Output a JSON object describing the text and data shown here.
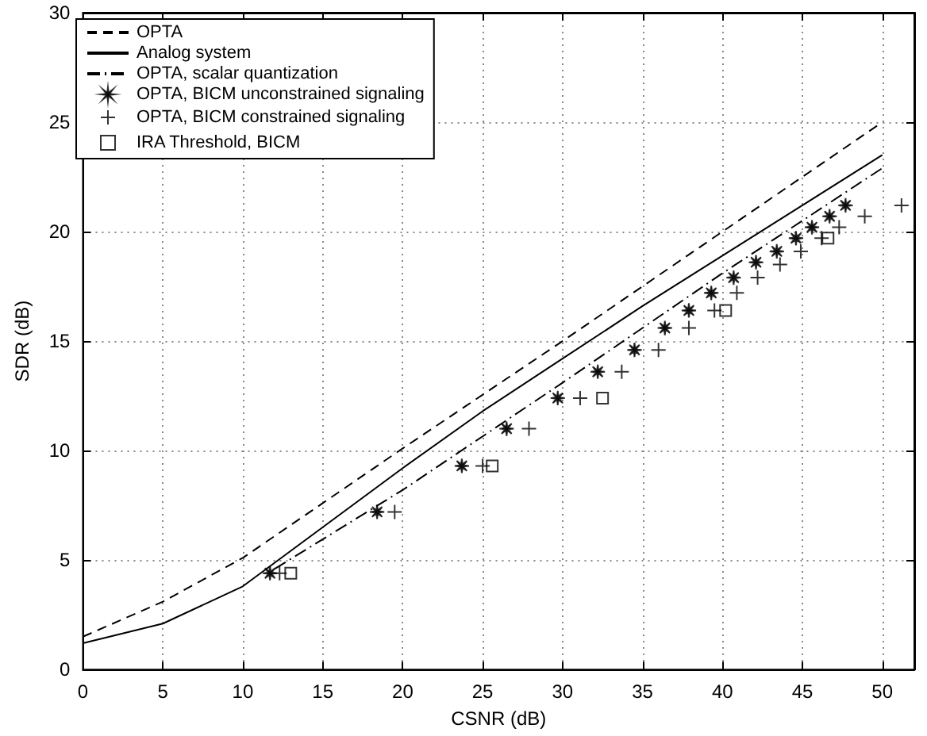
{
  "chart_data": {
    "type": "line",
    "xlabel": "CSNR (dB)",
    "ylabel": "SDR (dB)",
    "xlim": [
      0,
      52
    ],
    "ylim": [
      0,
      30
    ],
    "xticks": [
      0,
      5,
      10,
      15,
      20,
      25,
      30,
      35,
      40,
      45,
      50
    ],
    "yticks": [
      0,
      5,
      10,
      15,
      20,
      25,
      30
    ],
    "grid": true,
    "legend": "top left",
    "series": [
      {
        "name": "OPTA",
        "line_style": "dashed",
        "color": "#000000",
        "x": [
          0,
          5,
          10,
          15,
          20,
          30,
          40,
          50
        ],
        "values": [
          1.5,
          3.1,
          5.1,
          7.6,
          10.1,
          15,
          20,
          25
        ]
      },
      {
        "name": "Analog system",
        "line_style": "solid",
        "color": "#000000",
        "x": [
          0,
          5,
          10,
          15,
          20,
          25,
          30,
          35,
          40,
          45,
          50
        ],
        "values": [
          1.2,
          2.1,
          3.8,
          6.5,
          9.2,
          11.8,
          14.2,
          16.6,
          18.9,
          21.2,
          23.5
        ]
      },
      {
        "name": "OPTA, scalar quantization",
        "line_style": "dashdot",
        "color": "#000000",
        "x": [
          12,
          20,
          30,
          40,
          50
        ],
        "values": [
          4.6,
          8.2,
          13.1,
          18.1,
          22.9
        ]
      },
      {
        "name": "OPTA, BICM unconstrained signaling",
        "type": "scatter",
        "marker": "star",
        "color": "#000000",
        "x": [
          11.7,
          18.4,
          23.7,
          26.5,
          29.7,
          32.2,
          34.5,
          36.4,
          37.9,
          39.3,
          40.7,
          42.1,
          43.4,
          44.6,
          45.6,
          46.7,
          47.7
        ],
        "values": [
          4.4,
          7.2,
          9.3,
          11,
          12.4,
          13.6,
          14.6,
          15.6,
          16.4,
          17.2,
          17.9,
          18.6,
          19.1,
          19.7,
          20.2,
          20.7,
          21.2
        ]
      },
      {
        "name": "OPTA, BICM constrained signaling",
        "type": "scatter",
        "marker": "cross",
        "color": "#000000",
        "x": [
          12.3,
          19.5,
          25,
          27.9,
          31.1,
          33.7,
          36,
          37.9,
          39.5,
          40.9,
          42.2,
          43.6,
          44.9,
          46.2,
          47.3,
          48.9,
          51.2
        ],
        "values": [
          4.4,
          7.2,
          9.3,
          11,
          12.4,
          13.6,
          14.6,
          15.6,
          16.4,
          17.2,
          17.9,
          18.5,
          19.1,
          19.7,
          20.2,
          20.7,
          21.2
        ]
      },
      {
        "name": "IRA Threshold, BICM",
        "type": "scatter",
        "marker": "square",
        "color": "#000000",
        "x": [
          13,
          25.6,
          32.5,
          40.2,
          46.6
        ],
        "values": [
          4.4,
          9.3,
          12.4,
          16.4,
          19.7
        ]
      }
    ]
  }
}
